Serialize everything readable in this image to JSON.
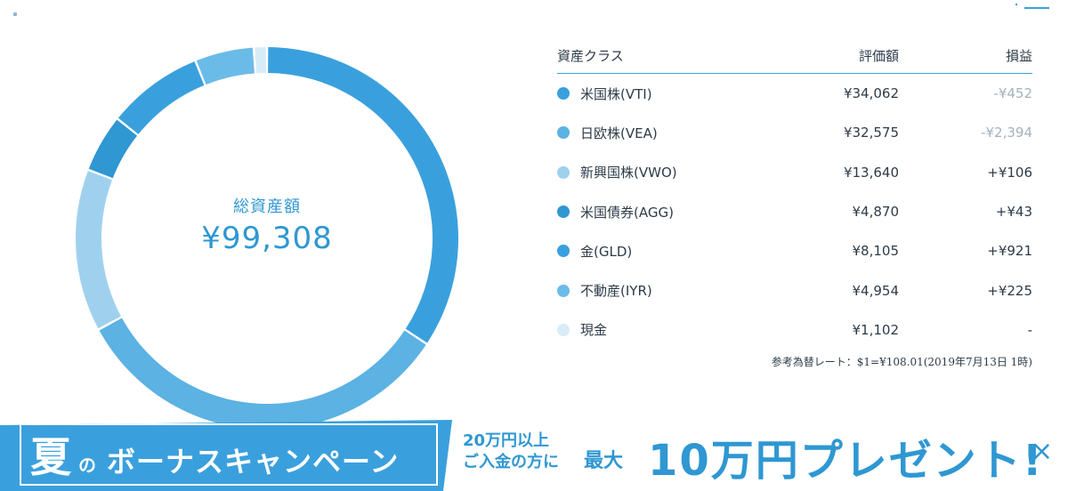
{
  "colors": {
    "accent": "#3aa0dd",
    "vti": "#3aa0dd",
    "vea": "#5bb2e3",
    "vwo": "#9fd1ef",
    "agg": "#2f97d2",
    "gld": "#3aa0dd",
    "iyr": "#6bbbe8",
    "cash": "#d8ecf8"
  },
  "header": {
    "menu_icon": "hamburger-menu-icon"
  },
  "summary": {
    "label": "総資産額",
    "value": "¥99,308"
  },
  "table": {
    "headers": {
      "asset_class": "資産クラス",
      "valuation": "評価額",
      "pl": "損益"
    },
    "rows": [
      {
        "name": "米国株(VTI)",
        "value": "¥34,062",
        "pl": "-¥452",
        "amount": 34062,
        "color": "#3aa0dd"
      },
      {
        "name": "日欧株(VEA)",
        "value": "¥32,575",
        "pl": "-¥2,394",
        "amount": 32575,
        "color": "#5bb2e3"
      },
      {
        "name": "新興国株(VWO)",
        "value": "¥13,640",
        "pl": "+¥106",
        "amount": 13640,
        "color": "#9fd1ef"
      },
      {
        "name": "米国債券(AGG)",
        "value": "¥4,870",
        "pl": "+¥43",
        "amount": 4870,
        "color": "#2f97d2"
      },
      {
        "name": "金(GLD)",
        "value": "¥8,105",
        "pl": "+¥921",
        "amount": 8105,
        "color": "#3aa0dd"
      },
      {
        "name": "不動産(IYR)",
        "value": "¥4,954",
        "pl": "+¥225",
        "amount": 4954,
        "color": "#6bbbe8"
      },
      {
        "name": "現金",
        "value": "¥1,102",
        "pl": "-",
        "amount": 1102,
        "color": "#d8ecf8"
      }
    ],
    "rate_note": "参考為替レート：$1=¥108.01(2019年7月13日 1時)"
  },
  "banner": {
    "title_char": "夏",
    "title_no": "の",
    "title_rest": "ボーナスキャンペーン",
    "condition_line1": "20万円以上",
    "condition_line2": "ご入金の方に",
    "max_label": "最大",
    "prize": "10万円プレゼント!",
    "close_label": "×"
  }
}
